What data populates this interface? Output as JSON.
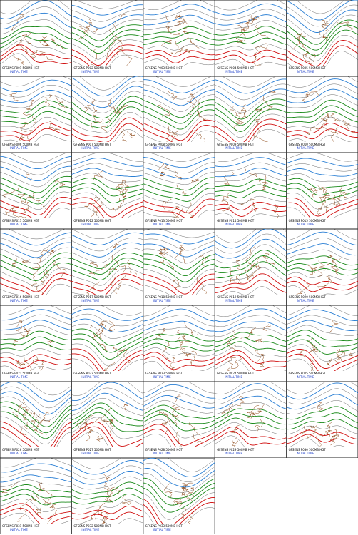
{
  "panels": [
    {
      "caption": "GFSENS P001 500MB HGT",
      "time": "INITIAL TIME"
    },
    {
      "caption": "GFSENS P002 500MB HGT",
      "time": "INITIAL TIME"
    },
    {
      "caption": "GFSENS P003 500MB HGT",
      "time": "INITIAL TIME"
    },
    {
      "caption": "GFSENS P004 500MB HGT",
      "time": "INITIAL TIME"
    },
    {
      "caption": "GFSENS P005 500MB HGT",
      "time": "INITIAL TIME"
    },
    {
      "caption": "GFSENS P006 500MB HGT",
      "time": "INITIAL TIME"
    },
    {
      "caption": "GFSENS P007 500MB HGT",
      "time": "INITIAL TIME"
    },
    {
      "caption": "GFSENS P008 500MB HGT",
      "time": "INITIAL TIME"
    },
    {
      "caption": "GFSENS P009 500MB HGT",
      "time": "INITIAL TIME"
    },
    {
      "caption": "GFSENS P010 500MB HGT",
      "time": "INITIAL TIME"
    },
    {
      "caption": "GFSENS P011 500MB HGT",
      "time": "INITIAL TIME"
    },
    {
      "caption": "GFSENS P012 500MB HGT",
      "time": "INITIAL TIME"
    },
    {
      "caption": "GFSENS P013 500MB HGT",
      "time": "INITIAL TIME"
    },
    {
      "caption": "GFSENS P014 500MB HGT",
      "time": "INITIAL TIME"
    },
    {
      "caption": "GFSENS P015 500MB HGT",
      "time": "INITIAL TIME"
    },
    {
      "caption": "GFSENS P016 500MB HGT",
      "time": "INITIAL TIME"
    },
    {
      "caption": "GFSENS P017 500MB HGT",
      "time": "INITIAL TIME"
    },
    {
      "caption": "GFSENS P018 500MB HGT",
      "time": "INITIAL TIME"
    },
    {
      "caption": "GFSENS P019 500MB HGT",
      "time": "INITIAL TIME"
    },
    {
      "caption": "GFSENS P020 500MB HGT",
      "time": "INITIAL TIME"
    },
    {
      "caption": "GFSENS P021 500MB HGT",
      "time": "INITIAL TIME"
    },
    {
      "caption": "GFSENS P022 500MB HGT",
      "time": "INITIAL TIME"
    },
    {
      "caption": "GFSENS P023 500MB HGT",
      "time": "INITIAL TIME"
    },
    {
      "caption": "GFSENS P024 500MB HGT",
      "time": "INITIAL TIME"
    },
    {
      "caption": "GFSENS P025 500MB HGT",
      "time": "INITIAL TIME"
    },
    {
      "caption": "GFSENS P026 500MB HGT",
      "time": "INITIAL TIME"
    },
    {
      "caption": "GFSENS P027 500MB HGT",
      "time": "INITIAL TIME"
    },
    {
      "caption": "GFSENS P028 500MB HGT",
      "time": "INITIAL TIME"
    },
    {
      "caption": "GFSENS P029 500MB HGT",
      "time": "INITIAL TIME"
    },
    {
      "caption": "GFSENS P030 500MB HGT",
      "time": "INITIAL TIME"
    },
    {
      "caption": "GFSENS P031 500MB HGT",
      "time": "INITIAL TIME"
    },
    {
      "caption": "GFSENS P032 500MB HGT",
      "time": "INITIAL TIME"
    },
    {
      "caption": "GFSENS P033 500MB HGT",
      "time": "INITIAL TIME"
    }
  ]
}
